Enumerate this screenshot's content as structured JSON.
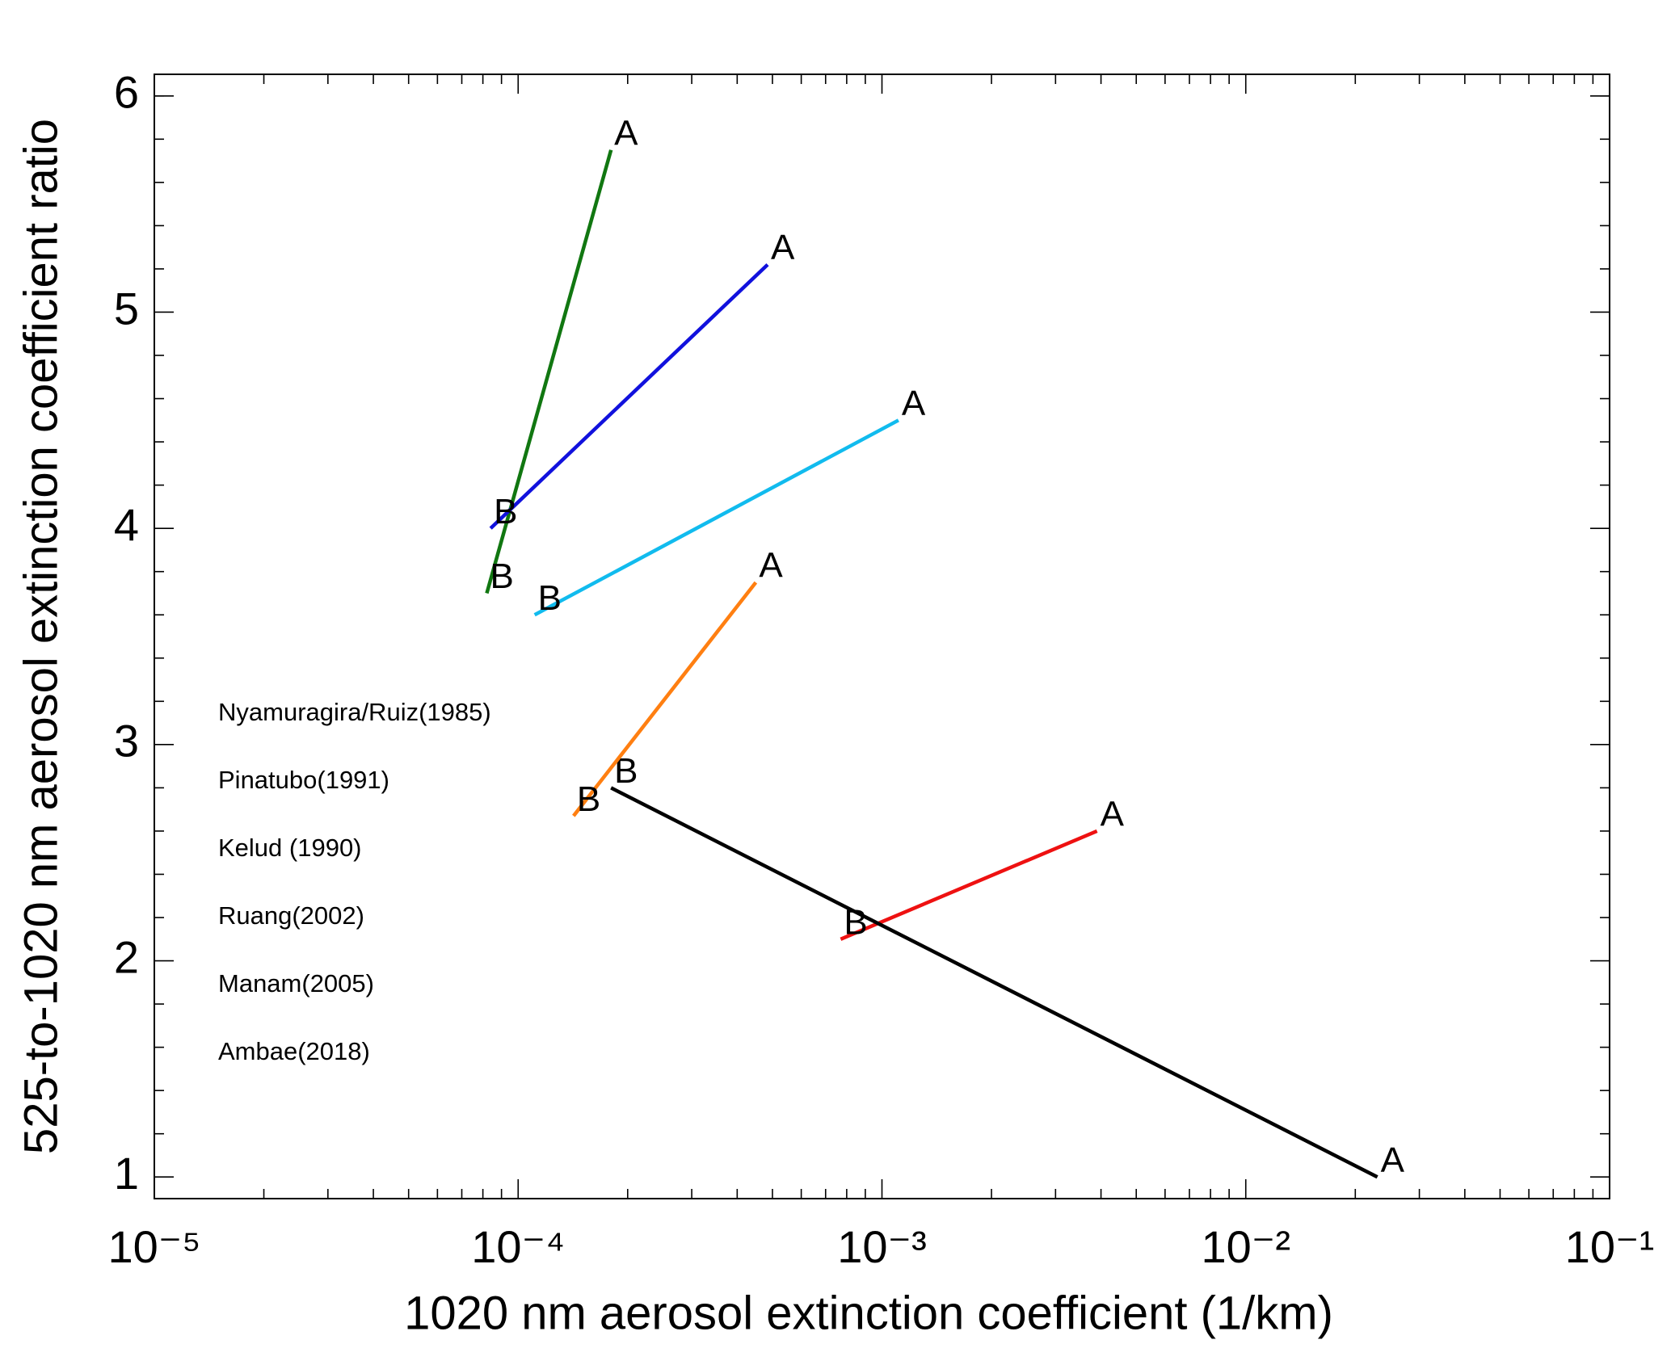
{
  "chart_data": {
    "type": "line",
    "xlabel": "1020 nm aerosol extinction coefficient (1/km)",
    "ylabel": "525-to-1020 nm aerosol extinction coefficient ratio",
    "xlog": true,
    "xlim": [
      1e-05,
      0.1
    ],
    "ylim": [
      0.9,
      6.1
    ],
    "xticks": [
      {
        "value": 1e-05,
        "label": "10⁻⁵"
      },
      {
        "value": 0.0001,
        "label": "10⁻⁴"
      },
      {
        "value": 0.001,
        "label": "10⁻³"
      },
      {
        "value": 0.01,
        "label": "10⁻²"
      },
      {
        "value": 0.1,
        "label": "10⁻¹"
      }
    ],
    "xminorticks": [
      2e-05,
      3e-05,
      4e-05,
      5e-05,
      6e-05,
      7e-05,
      8e-05,
      9e-05,
      0.0002,
      0.0003,
      0.0004,
      0.0005,
      0.0006,
      0.0007,
      0.0008,
      0.0009,
      0.002,
      0.003,
      0.004,
      0.005,
      0.006,
      0.007,
      0.008,
      0.009,
      0.02,
      0.03,
      0.04,
      0.05,
      0.06,
      0.07,
      0.08,
      0.09
    ],
    "yticks": [
      1,
      2,
      3,
      4,
      5,
      6
    ],
    "yminorticks": [
      1.2,
      1.4,
      1.6,
      1.8,
      2.2,
      2.4,
      2.6,
      2.8,
      3.2,
      3.4,
      3.6,
      3.8,
      4.2,
      4.4,
      4.6,
      4.8,
      5.2,
      5.4,
      5.6,
      5.8,
      6.0
    ],
    "series": [
      {
        "name": "Nyamuragira/Ruiz(1985)",
        "color": "#ee1111",
        "x": [
          0.00077,
          0.0039
        ],
        "values": [
          2.1,
          2.6
        ],
        "point_labels": [
          "B",
          "A"
        ]
      },
      {
        "name": "Pinatubo(1991)",
        "color": "#000000",
        "x": [
          0.00018,
          0.023
        ],
        "values": [
          2.8,
          1.0
        ],
        "point_labels": [
          "B",
          "A"
        ]
      },
      {
        "name": "Kelud (1990)",
        "color": "#ff7f11",
        "x": [
          0.000142,
          0.00045
        ],
        "values": [
          2.67,
          3.75
        ],
        "point_labels": [
          "B",
          "A"
        ]
      },
      {
        "name": "Ruang(2002)",
        "color": "#117711",
        "x": [
          8.2e-05,
          0.00018
        ],
        "values": [
          3.7,
          5.75
        ],
        "point_labels": [
          "B",
          "A"
        ]
      },
      {
        "name": "Manam(2005)",
        "color": "#1111dd",
        "x": [
          8.4e-05,
          0.000485
        ],
        "values": [
          4.0,
          5.22
        ],
        "point_labels": [
          "B",
          "A"
        ]
      },
      {
        "name": "Ambae(2018)",
        "color": "#11bbee",
        "x": [
          0.000111,
          0.00111
        ],
        "values": [
          3.6,
          4.5
        ],
        "point_labels": [
          "B",
          "A"
        ]
      }
    ]
  }
}
